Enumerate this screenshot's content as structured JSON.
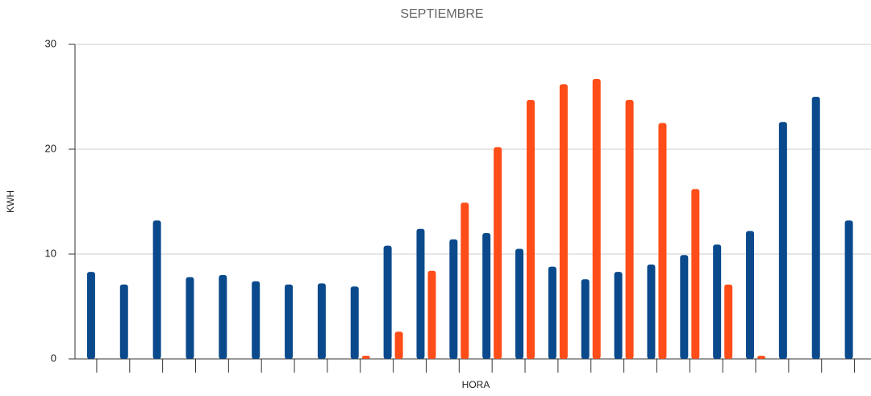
{
  "chart_data": {
    "type": "bar",
    "title": "SEPTIEMBRE",
    "x_label": "HORA",
    "y_label": "KWH",
    "categories": [
      null,
      null,
      null,
      null,
      null,
      null,
      null,
      null,
      null,
      null,
      null,
      null,
      null,
      null,
      null,
      null,
      null,
      null,
      null,
      null,
      null,
      null,
      null,
      null
    ],
    "series": [
      {
        "color": "#0a4a8c",
        "values": [
          8.3,
          7.1,
          13.2,
          7.8,
          8.0,
          7.4,
          7.1,
          7.2,
          6.9,
          10.8,
          12.4,
          11.4,
          12.0,
          10.5,
          8.8,
          7.6,
          8.3,
          9.0,
          9.9,
          10.9,
          12.2,
          22.6,
          25.0,
          13.2
        ]
      },
      {
        "color": "#ff4d1a",
        "values": [
          0,
          0,
          0,
          0,
          0,
          0,
          0,
          0,
          0.3,
          2.6,
          8.4,
          14.9,
          20.2,
          24.7,
          26.2,
          26.7,
          24.7,
          22.5,
          16.2,
          7.1,
          0.3,
          0,
          0,
          0
        ]
      }
    ],
    "ylim": [
      0,
      30
    ],
    "yticks": [
      0,
      10,
      20,
      30
    ],
    "grid": true
  }
}
